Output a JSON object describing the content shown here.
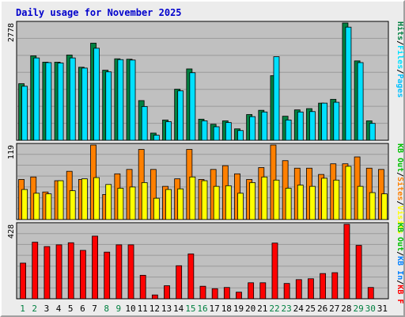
{
  "chart_data": {
    "type": "bar",
    "title": "Daily usage for November 2025",
    "categories": [
      "1",
      "2",
      "3",
      "4",
      "5",
      "6",
      "7",
      "8",
      "9",
      "10",
      "11",
      "12",
      "13",
      "14",
      "15",
      "16",
      "17",
      "18",
      "19",
      "20",
      "21",
      "22",
      "23",
      "24",
      "25",
      "26",
      "27",
      "28",
      "29",
      "30",
      "31"
    ],
    "weekend_days": [
      "1",
      "2",
      "8",
      "9",
      "15",
      "16",
      "22",
      "23",
      "29",
      "30"
    ],
    "colors": {
      "title": "#0000cc",
      "plot_bg": "#c0c0c0",
      "grid": "#9a9a9a",
      "hits": "#008040",
      "files": "#00e0ff",
      "pages": "#00c0ff",
      "visits": "#ffff00",
      "sites": "#ff8000",
      "kbf": "#ff0000",
      "kbin": "#0080ff",
      "kbout": "#00c000",
      "weekend": "#008040",
      "weekday": "#000000"
    },
    "charts": [
      {
        "id": "hits",
        "ymax_label": "2778",
        "ymax": 2778,
        "legend": [
          "Pages",
          "Files",
          "Hits"
        ],
        "series": [
          {
            "name": "Hits",
            "color": "#008040",
            "values": [
              1340,
              2000,
              1850,
              1850,
              2020,
              1730,
              2300,
              1660,
              1930,
              1920,
              940,
              170,
              480,
              1210,
              1690,
              500,
              380,
              460,
              270,
              610,
              710,
              1530,
              570,
              720,
              750,
              880,
              970,
              2778,
              1880,
              460,
              0
            ]
          },
          {
            "name": "Files",
            "color": "#00e0ff",
            "values": [
              1280,
              1950,
              1840,
              1830,
              1950,
              1710,
              2180,
              1620,
              1910,
              1900,
              800,
              120,
              440,
              1170,
              1600,
              460,
              320,
              420,
              230,
              560,
              670,
              1980,
              480,
              670,
              680,
              880,
              900,
              2680,
              1840,
              400,
              0
            ]
          }
        ]
      },
      {
        "id": "visits",
        "ymax_label": "119",
        "ymax": 119,
        "legend": [
          "Visits",
          "Sites",
          "KB Out"
        ],
        "series": [
          {
            "name": "Sites",
            "color": "#ff8000",
            "values": [
              64,
              68,
              44,
              62,
              77,
              64,
              119,
              40,
              73,
              80,
              112,
              80,
              53,
              65,
              112,
              64,
              80,
              86,
              73,
              64,
              83,
              119,
              94,
              82,
              82,
              72,
              89,
              89,
              100,
              82,
              80
            ]
          },
          {
            "name": "Visits",
            "color": "#ffff00",
            "values": [
              48,
              42,
              41,
              62,
              46,
              65,
              67,
              56,
              50,
              52,
              59,
              34,
              48,
              49,
              68,
              62,
              53,
              54,
              42,
              59,
              68,
              63,
              50,
              55,
              53,
              66,
              63,
              85,
              53,
              43,
              41
            ]
          }
        ]
      },
      {
        "id": "kbytes",
        "ymax_label": "428",
        "ymax": 428,
        "legend": [
          "KB F",
          "KB In",
          "KB Out"
        ],
        "series": [
          {
            "name": "KB F",
            "color": "#ff0000",
            "values": [
              205,
              325,
              300,
              310,
              322,
              278,
              360,
              268,
              310,
              310,
              135,
              22,
              75,
              190,
              258,
              72,
              58,
              65,
              38,
              92,
              92,
              320,
              88,
              110,
              115,
              145,
              150,
              428,
              307,
              65,
              0
            ]
          }
        ]
      }
    ]
  }
}
